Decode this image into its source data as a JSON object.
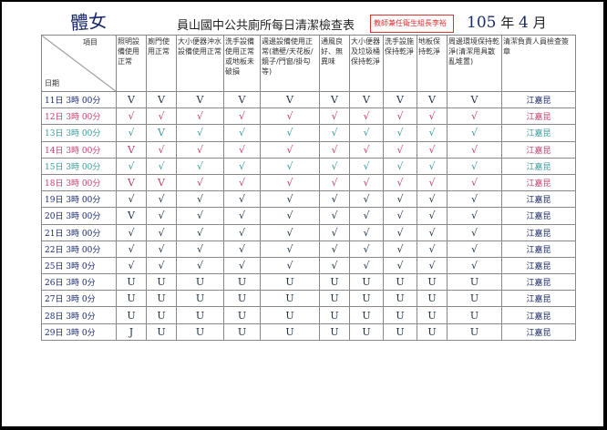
{
  "header": {
    "handwritten_note": "體女",
    "title": "員山國中公共廁所每日清潔檢查表",
    "stamp": "教師兼任衛生組長李裕",
    "year": "105",
    "year_label": "年",
    "month": "4",
    "month_label": "月"
  },
  "table": {
    "corner_top": "項目",
    "corner_bottom": "日期",
    "columns": [
      "照明設備使用正常",
      "廁門使用正常",
      "大小便器沖水設備使用正常",
      "洗手設備使用正常或地板未破損",
      "週邊設備使用正常(牆壁/天花板/鏡子/門窗/掛勾等)",
      "通風良好、無異味",
      "大小便器及垃圾桶保持乾淨",
      "洗手設施保持乾淨",
      "地板保持乾淨",
      "周邊環境保持乾淨(清潔用具散亂堆置)",
      "清潔負責人員檢查簽章"
    ],
    "rows": [
      {
        "date": "11日 3時 00分",
        "marks": [
          "V",
          "V",
          "V",
          "V",
          "V",
          "V",
          "V",
          "V",
          "V",
          "V"
        ],
        "signature": "江嘉昆"
      },
      {
        "date": "12日 3時 00分",
        "marks": [
          "√",
          "√",
          "√",
          "√",
          "√",
          "√",
          "√",
          "√",
          "√",
          "√"
        ],
        "signature": "江嘉昆"
      },
      {
        "date": "13日 3時 00分",
        "marks": [
          "√",
          "V",
          "√",
          "√",
          "√",
          "√",
          "√",
          "√",
          "√",
          "√"
        ],
        "signature": "江嘉昆"
      },
      {
        "date": "14日 3時 00分",
        "marks": [
          "V",
          "√",
          "√",
          "√",
          "√",
          "√",
          "√",
          "√",
          "√",
          "√"
        ],
        "signature": "江嘉昆"
      },
      {
        "date": "15日 3時 00分",
        "marks": [
          "√",
          "√",
          "√",
          "√",
          "√",
          "√",
          "√",
          "√",
          "√",
          "√"
        ],
        "signature": "江嘉昆"
      },
      {
        "date": "18日 3時 00分",
        "marks": [
          "V",
          "V",
          "√",
          "√",
          "√",
          "√",
          "√",
          "√",
          "√",
          "√"
        ],
        "signature": "江嘉昆"
      },
      {
        "date": "19日 3時 00分",
        "marks": [
          "√",
          "√",
          "√",
          "√",
          "√",
          "√",
          "√",
          "√",
          "√",
          "√"
        ],
        "signature": "江嘉昆"
      },
      {
        "date": "20日 3時 00分",
        "marks": [
          "V",
          "√",
          "√",
          "√",
          "√",
          "√",
          "√",
          "√",
          "√",
          "√"
        ],
        "signature": "江嘉昆"
      },
      {
        "date": "21日 3時 00分",
        "marks": [
          "√",
          "√",
          "√",
          "√",
          "√",
          "√",
          "√",
          "√",
          "√",
          "√"
        ],
        "signature": "江嘉昆"
      },
      {
        "date": "22日 3時 00分",
        "marks": [
          "√",
          "√",
          "√",
          "√",
          "√",
          "√",
          "√",
          "√",
          "√",
          "√"
        ],
        "signature": "江嘉昆"
      },
      {
        "date": "25日 3時 0分",
        "marks": [
          "√",
          "√",
          "√",
          "√",
          "√",
          "√",
          "√",
          "√",
          "√",
          "√"
        ],
        "signature": "江嘉昆"
      },
      {
        "date": "26日 3時 0分",
        "marks": [
          "U",
          "U",
          "U",
          "U",
          "U",
          "U",
          "U",
          "U",
          "U",
          "U"
        ],
        "signature": "江嘉昆"
      },
      {
        "date": "27日 3時 0分",
        "marks": [
          "U",
          "U",
          "U",
          "U",
          "U",
          "U",
          "U",
          "U",
          "U",
          "U"
        ],
        "signature": "江嘉昆"
      },
      {
        "date": "28日 3時 0分",
        "marks": [
          "U",
          "U",
          "U",
          "U",
          "U",
          "U",
          "U",
          "U",
          "U",
          "U"
        ],
        "signature": "江嘉昆"
      },
      {
        "date": "29日 3時 0分",
        "marks": [
          "J",
          "U",
          "U",
          "U",
          "U",
          "U",
          "U",
          "U",
          "U",
          "U"
        ],
        "signature": "江嘉昆"
      }
    ]
  }
}
